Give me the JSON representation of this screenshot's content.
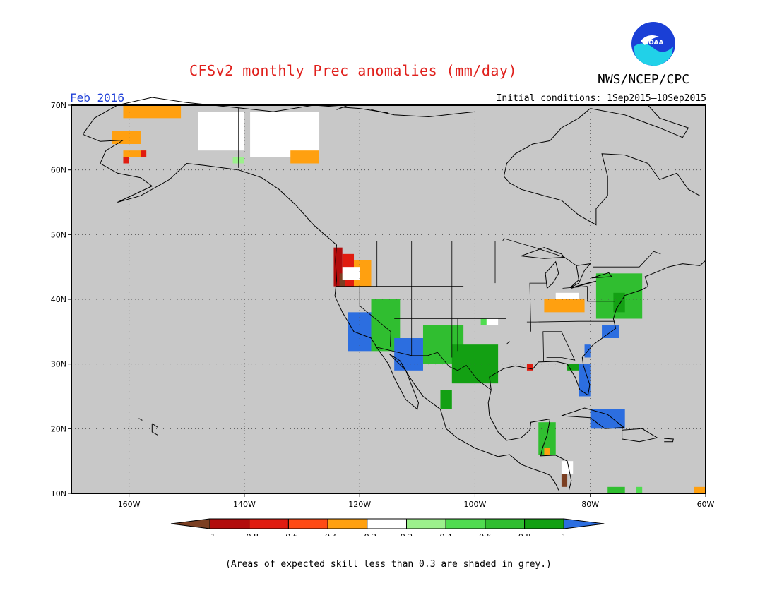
{
  "header": {
    "title": "CFSv2 monthly Prec anomalies (mm/day)",
    "agency": "NWS/NCEP/CPC",
    "logo_text": "NOAA",
    "valid_month": "Feb 2016",
    "initial_conditions": "Initial conditions: 1Sep2015—10Sep2015"
  },
  "map": {
    "projection": "lat-lon",
    "lon_range": [
      -170,
      -60
    ],
    "lat_range": [
      10,
      70
    ],
    "lat_ticks": [
      "70N",
      "60N",
      "50N",
      "40N",
      "30N",
      "20N",
      "10N"
    ],
    "lon_ticks": [
      "160W",
      "140W",
      "120W",
      "100W",
      "80W",
      "60W"
    ],
    "grid": true,
    "background_color": "#c8c8c8"
  },
  "colorbar": {
    "labels": [
      "−1",
      "−0.8",
      "−0.6",
      "−0.4",
      "−0.2",
      "0.2",
      "0.4",
      "0.6",
      "0.8",
      "1"
    ],
    "colors": [
      "#7b3f22",
      "#b20c0c",
      "#e01c10",
      "#ff4a14",
      "#ffa010",
      "#ffffff",
      "#9cf08c",
      "#50dc50",
      "#30be30",
      "#13a013",
      "#2c6ee0"
    ]
  },
  "footnote": "(Areas of expected skill less than 0.3 are shaded in grey.)",
  "chart_data": {
    "type": "heatmap",
    "title": "CFSv2 monthly Prec anomalies (mm/day)",
    "subtitle": "Feb 2016",
    "units": "mm/day",
    "x_range": [
      -170,
      -60
    ],
    "y_range": [
      10,
      70
    ],
    "cells": [
      {
        "lon_min": -161,
        "lon_max": -151,
        "lat_min": 68,
        "lat_max": 70,
        "value": -0.3
      },
      {
        "lon_min": -163,
        "lon_max": -158,
        "lat_min": 64,
        "lat_max": 66,
        "value": -0.3
      },
      {
        "lon_min": -161,
        "lon_max": -157,
        "lat_min": 62,
        "lat_max": 63,
        "value": -0.3
      },
      {
        "lon_min": -158,
        "lon_max": -157,
        "lat_min": 62,
        "lat_max": 63,
        "value": -0.7
      },
      {
        "lon_min": -161,
        "lon_max": -160,
        "lat_min": 61,
        "lat_max": 62,
        "value": -0.7
      },
      {
        "lon_min": -148,
        "lon_max": -140,
        "lat_min": 63,
        "lat_max": 69,
        "value": 0.0
      },
      {
        "lon_min": -139,
        "lon_max": -127,
        "lat_min": 62,
        "lat_max": 69,
        "value": 0.0
      },
      {
        "lon_min": -132,
        "lon_max": -127,
        "lat_min": 61,
        "lat_max": 63,
        "value": -0.3
      },
      {
        "lon_min": -142,
        "lon_max": -140,
        "lat_min": 61,
        "lat_max": 62,
        "value": 0.3
      },
      {
        "lon_min": -124.5,
        "lon_max": -123,
        "lat_min": 42,
        "lat_max": 48,
        "value": -0.9
      },
      {
        "lon_min": -123,
        "lon_max": -121,
        "lat_min": 42,
        "lat_max": 47,
        "value": -0.7
      },
      {
        "lon_min": -121,
        "lon_max": -118,
        "lat_min": 42,
        "lat_max": 46,
        "value": -0.3
      },
      {
        "lon_min": -123.5,
        "lon_max": -122.5,
        "lat_min": 42,
        "lat_max": 44,
        "value": -1.1
      },
      {
        "lon_min": -123,
        "lon_max": -120,
        "lat_min": 43,
        "lat_max": 45,
        "value": 0.0
      },
      {
        "lon_min": -122,
        "lon_max": -118,
        "lat_min": 32,
        "lat_max": 38,
        "value": 1.1
      },
      {
        "lon_min": -118,
        "lon_max": -113,
        "lat_min": 32,
        "lat_max": 40,
        "value": 0.6
      },
      {
        "lon_min": -114,
        "lon_max": -109,
        "lat_min": 29,
        "lat_max": 34,
        "value": 1.1
      },
      {
        "lon_min": -109,
        "lon_max": -102,
        "lat_min": 30,
        "lat_max": 36,
        "value": 0.7
      },
      {
        "lon_min": -104,
        "lon_max": -96,
        "lat_min": 27,
        "lat_max": 33,
        "value": 0.8
      },
      {
        "lon_min": -99,
        "lon_max": -97,
        "lat_min": 36,
        "lat_max": 37,
        "value": 0.4
      },
      {
        "lon_min": -98,
        "lon_max": -96,
        "lat_min": 36,
        "lat_max": 37,
        "value": 0.0
      },
      {
        "lon_min": -106,
        "lon_max": -104,
        "lat_min": 23,
        "lat_max": 26,
        "value": 0.8
      },
      {
        "lon_min": -88,
        "lon_max": -81,
        "lat_min": 38,
        "lat_max": 40,
        "value": -0.3
      },
      {
        "lon_min": -86,
        "lon_max": -82,
        "lat_min": 40,
        "lat_max": 41,
        "value": 0.0
      },
      {
        "lon_min": -79,
        "lon_max": -71,
        "lat_min": 37,
        "lat_max": 44,
        "value": 0.6
      },
      {
        "lon_min": -76,
        "lon_max": -74,
        "lat_min": 38,
        "lat_max": 41,
        "value": 0.8
      },
      {
        "lon_min": -78,
        "lon_max": -75,
        "lat_min": 34,
        "lat_max": 36,
        "value": 1.1
      },
      {
        "lon_min": -81,
        "lon_max": -80,
        "lat_min": 31,
        "lat_max": 33,
        "value": 1.1
      },
      {
        "lon_min": -82,
        "lon_max": -80,
        "lat_min": 25,
        "lat_max": 30,
        "value": 1.1
      },
      {
        "lon_min": -84,
        "lon_max": -82,
        "lat_min": 29,
        "lat_max": 30,
        "value": 0.8
      },
      {
        "lon_min": -91,
        "lon_max": -90,
        "lat_min": 29,
        "lat_max": 30,
        "value": -0.7
      },
      {
        "lon_min": -80,
        "lon_max": -74,
        "lat_min": 20,
        "lat_max": 23,
        "value": 1.1
      },
      {
        "lon_min": -89,
        "lon_max": -86,
        "lat_min": 16,
        "lat_max": 21,
        "value": 0.6
      },
      {
        "lon_min": -88,
        "lon_max": -87,
        "lat_min": 16,
        "lat_max": 17,
        "value": -0.3
      },
      {
        "lon_min": -85,
        "lon_max": -84,
        "lat_min": 11,
        "lat_max": 13,
        "value": -1.1
      },
      {
        "lon_min": -85,
        "lon_max": -83,
        "lat_min": 13,
        "lat_max": 15,
        "value": 0.0
      },
      {
        "lon_min": -72,
        "lon_max": -71,
        "lat_min": 10,
        "lat_max": 11,
        "value": 0.4
      },
      {
        "lon_min": -62,
        "lon_max": -60,
        "lat_min": 10,
        "lat_max": 11,
        "value": -0.3
      },
      {
        "lon_min": -77,
        "lon_max": -74,
        "lat_min": 10,
        "lat_max": 11,
        "value": 0.6
      }
    ]
  }
}
